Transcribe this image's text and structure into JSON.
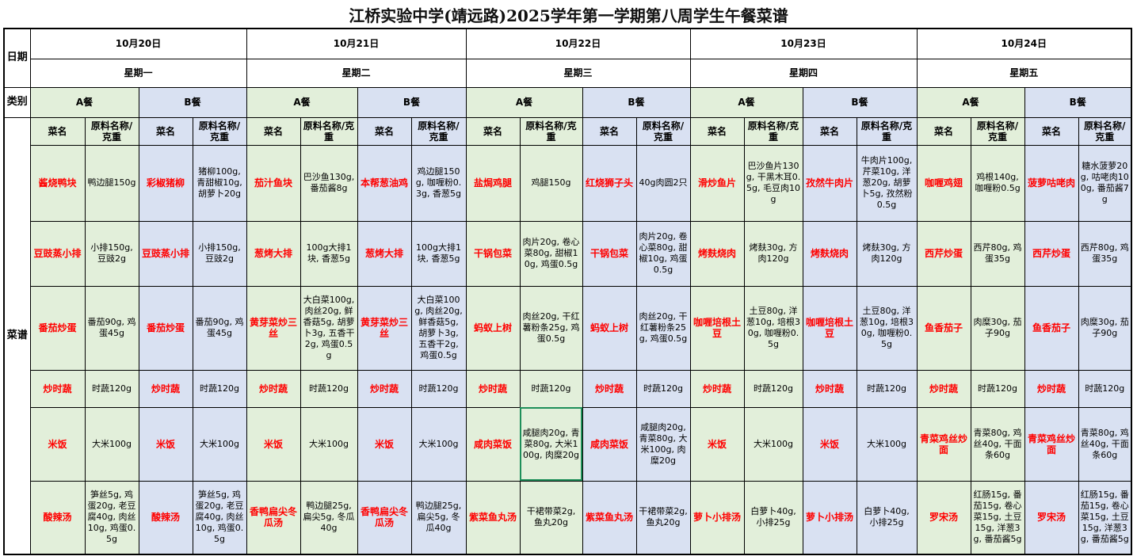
{
  "title": "江桥实验中学(靖远路)2025学年第一学期第八周学生午餐菜谱",
  "labels": {
    "date": "日期",
    "category": "类别",
    "menu": "菜谱",
    "dish_header": "菜名",
    "ingredient_header": "原料名称/克重",
    "meal_a": "A餐",
    "meal_b": "B餐"
  },
  "colors": {
    "meal_a_bg": "#E2EFDA",
    "meal_b_bg": "#D9E1F2",
    "dish_text": "#FF0000",
    "selection": "#1E8F5A"
  },
  "selected_cell": {
    "day": "10月22日",
    "meal": "A餐",
    "row": 5
  },
  "days": [
    {
      "date": "10月20日",
      "weekday": "星期一",
      "a": [
        {
          "name": "酱烧鸭块",
          "ingredients": "鸭边腿150g"
        },
        {
          "name": "豆豉蒸小排",
          "ingredients": "小排150g, 豆豉2g"
        },
        {
          "name": "番茄炒蛋",
          "ingredients": "番茄90g, 鸡蛋45g"
        },
        {
          "name": "炒时蔬",
          "ingredients": "时蔬120g"
        },
        {
          "name": "米饭",
          "ingredients": "大米100g"
        },
        {
          "name": "酸辣汤",
          "ingredients": "笋丝5g, 鸡蛋20g, 老豆腐40g, 肉丝10g, 鸡蛋0.5g"
        }
      ],
      "b": [
        {
          "name": "彩椒猪柳",
          "ingredients": "猪柳100g, 青甜椒10g, 胡萝卜20g"
        },
        {
          "name": "豆豉蒸小排",
          "ingredients": "小排150g, 豆豉2g"
        },
        {
          "name": "番茄炒蛋",
          "ingredients": "番茄90g, 鸡蛋45g"
        },
        {
          "name": "炒时蔬",
          "ingredients": "时蔬120g"
        },
        {
          "name": "米饭",
          "ingredients": "大米100g"
        },
        {
          "name": "酸辣汤",
          "ingredients": "笋丝5g, 鸡蛋20g, 老豆腐40g, 肉丝10g, 鸡蛋0.5g"
        }
      ]
    },
    {
      "date": "10月21日",
      "weekday": "星期二",
      "a": [
        {
          "name": "茄汁鱼块",
          "ingredients": "巴沙鱼130g, 番茄酱8g"
        },
        {
          "name": "葱烤大排",
          "ingredients": "100g大排1块, 香葱5g"
        },
        {
          "name": "黄芽菜炒三丝",
          "ingredients": "大白菜100g, 肉丝20g, 鲜香菇5g, 胡萝卜3g, 五香干2g, 鸡蛋0.5g"
        },
        {
          "name": "炒时蔬",
          "ingredients": "时蔬120g"
        },
        {
          "name": "米饭",
          "ingredients": "大米100g"
        },
        {
          "name": "香鸭扁尖冬瓜汤",
          "ingredients": "鸭边腿25g, 扁尖5g, 冬瓜40g"
        }
      ],
      "b": [
        {
          "name": "本帮葱油鸡",
          "ingredients": "鸡边腿150g, 咖喱粉0.3g, 香葱5g"
        },
        {
          "name": "葱烤大排",
          "ingredients": "100g大排1块, 香葱5g"
        },
        {
          "name": "黄芽菜炒三丝",
          "ingredients": "大白菜100g, 肉丝20g, 鲜香菇5g, 胡萝卜3g, 五香干2g, 鸡蛋0.5g"
        },
        {
          "name": "炒时蔬",
          "ingredients": "时蔬120g"
        },
        {
          "name": "米饭",
          "ingredients": "大米100g"
        },
        {
          "name": "香鸭扁尖冬瓜汤",
          "ingredients": "鸭边腿25g, 扁尖5g, 冬瓜40g"
        }
      ]
    },
    {
      "date": "10月22日",
      "weekday": "星期三",
      "a": [
        {
          "name": "盐焗鸡腿",
          "ingredients": "鸡腿150g"
        },
        {
          "name": "干锅包菜",
          "ingredients": "肉片20g, 卷心菜80g, 甜椒10g, 鸡蛋0.5g"
        },
        {
          "name": "蚂蚁上树",
          "ingredients": "肉丝20g, 干红薯粉条25g, 鸡蛋0.5g"
        },
        {
          "name": "炒时蔬",
          "ingredients": "时蔬120g"
        },
        {
          "name": "咸肉菜饭",
          "ingredients": "咸腿肉20g, 青菜80g, 大米100g, 肉糜20g"
        },
        {
          "name": "紫菜鱼丸汤",
          "ingredients": "干裙带菜2g, 鱼丸20g"
        }
      ],
      "b": [
        {
          "name": "红烧狮子头",
          "ingredients": "40g肉圆2只"
        },
        {
          "name": "干锅包菜",
          "ingredients": "肉片20g, 卷心菜80g, 甜椒10g, 鸡蛋0.5g"
        },
        {
          "name": "蚂蚁上树",
          "ingredients": "肉丝20g, 干红薯粉条25g, 鸡蛋0.5g"
        },
        {
          "name": "炒时蔬",
          "ingredients": "时蔬120g"
        },
        {
          "name": "咸肉菜饭",
          "ingredients": "咸腿肉20g, 青菜80g, 大米100g, 肉糜20g"
        },
        {
          "name": "紫菜鱼丸汤",
          "ingredients": "干裙带菜2g, 鱼丸20g"
        }
      ]
    },
    {
      "date": "10月23日",
      "weekday": "星期四",
      "a": [
        {
          "name": "滑炒鱼片",
          "ingredients": "巴沙鱼片130g, 干黑木耳0.5g, 毛豆肉10g"
        },
        {
          "name": "烤麸烧肉",
          "ingredients": "烤麸30g, 方肉120g"
        },
        {
          "name": "咖喱培根土豆",
          "ingredients": "土豆80g, 洋葱10g, 培根30g, 咖喱粉0.5g"
        },
        {
          "name": "炒时蔬",
          "ingredients": "时蔬120g"
        },
        {
          "name": "米饭",
          "ingredients": "大米100g"
        },
        {
          "name": "萝卜小排汤",
          "ingredients": "白萝卜40g, 小排25g"
        }
      ],
      "b": [
        {
          "name": "孜然牛肉片",
          "ingredients": "牛肉片100g, 芹菜10g, 洋葱20g, 胡萝卜5g, 孜然粉0.5g"
        },
        {
          "name": "烤麸烧肉",
          "ingredients": "烤麸30g, 方肉120g"
        },
        {
          "name": "咖喱培根土豆",
          "ingredients": "土豆80g, 洋葱10g, 培根30g, 咖喱粉0.5g"
        },
        {
          "name": "炒时蔬",
          "ingredients": "时蔬120g"
        },
        {
          "name": "米饭",
          "ingredients": "大米100g"
        },
        {
          "name": "萝卜小排汤",
          "ingredients": "白萝卜40g, 小排25g"
        }
      ]
    },
    {
      "date": "10月24日",
      "weekday": "星期五",
      "a": [
        {
          "name": "咖喱鸡翅",
          "ingredients": "鸡根140g, 咖喱粉0.5g"
        },
        {
          "name": "西芹炒蛋",
          "ingredients": "西芹80g, 鸡蛋35g"
        },
        {
          "name": "鱼香茄子",
          "ingredients": "肉糜30g, 茄子90g"
        },
        {
          "name": "炒时蔬",
          "ingredients": "时蔬120g"
        },
        {
          "name": "青菜鸡丝炒面",
          "ingredients": "青菜80g, 鸡丝40g, 干面条60g"
        },
        {
          "name": "罗宋汤",
          "ingredients": "红肠15g, 番茄15g, 卷心菜15g, 土豆15g, 洋葱3g, 番茄酱5g"
        }
      ],
      "b": [
        {
          "name": "菠萝咕咾肉",
          "ingredients": "糖水菠萝20g, 咕咾肉100g, 番茄酱7g"
        },
        {
          "name": "西芹炒蛋",
          "ingredients": "西芹80g, 鸡蛋35g"
        },
        {
          "name": "鱼香茄子",
          "ingredients": "肉糜30g, 茄子90g"
        },
        {
          "name": "炒时蔬",
          "ingredients": "时蔬120g"
        },
        {
          "name": "青菜鸡丝炒面",
          "ingredients": "青菜80g, 鸡丝40g, 干面条60g"
        },
        {
          "name": "罗宋汤",
          "ingredients": "红肠15g, 番茄15g, 卷心菜15g, 土豆15g, 洋葱3g, 番茄酱5g"
        }
      ]
    }
  ]
}
